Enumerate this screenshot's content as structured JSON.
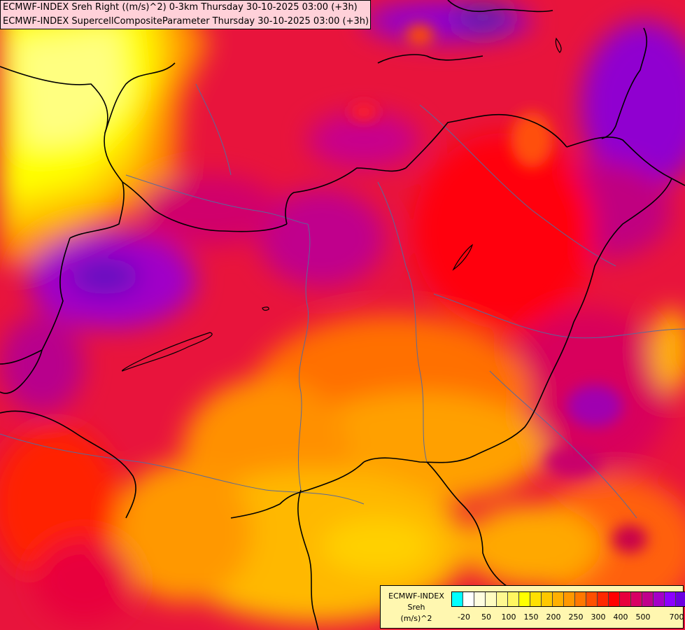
{
  "title": {
    "line1": "ECMWF-INDEX Sreh Right ((m/s)^2) 0-3km Thursday 30-10-2025 03:00 (+3h)",
    "line2": "ECMWF-INDEX SupercellCompositeParameter Thursday 30-10-2025 03:00 (+3h)"
  },
  "legend": {
    "line1": "ECMWF-INDEX",
    "line2": "Sreh",
    "line3": "(m/s)^2",
    "colors": [
      "#00ffff",
      "#ffffff",
      "#fffde0",
      "#fffcc0",
      "#fff890",
      "#fff660",
      "#ffff00",
      "#ffe000",
      "#ffc800",
      "#ffb000",
      "#ff9800",
      "#ff7800",
      "#ff5000",
      "#ff2800",
      "#ff0000",
      "#e8003c",
      "#d80064",
      "#c0008c",
      "#a400c8",
      "#8c00ff",
      "#6c00e0",
      "#4c00b0",
      "#24007a"
    ],
    "ticks": [
      "-20",
      "50",
      "100",
      "150",
      "200",
      "250",
      "300",
      "400",
      "500",
      "700"
    ]
  }
}
